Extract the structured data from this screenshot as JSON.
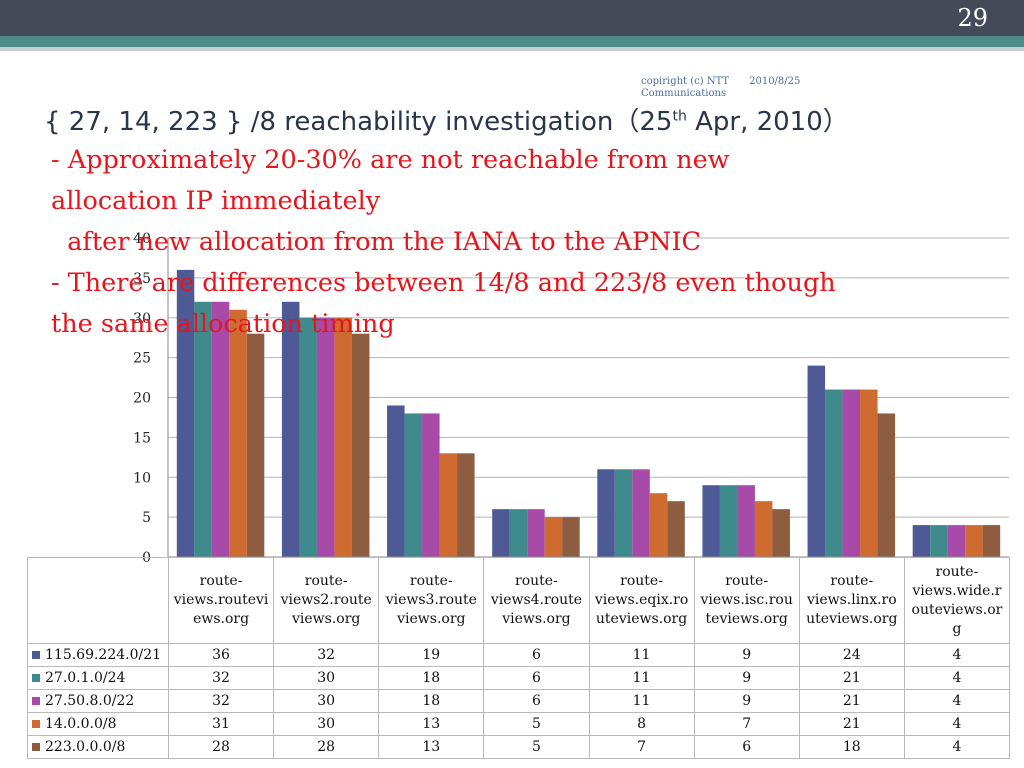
{
  "slide_number": "29",
  "copyright": {
    "text": "copiright (c) NTT",
    "sub": "Communications",
    "date": "2010/8/25"
  },
  "title": {
    "main": "{ 27, 14, 223 } /8 reachability investigation（25",
    "sup": "th",
    "tail": " Apr, 2010）"
  },
  "bullets": [
    "- Approximately 20-30% are not reachable from new",
    "allocation IP immediately",
    "  after new allocation from the IANA to the APNIC",
    "- There are differences between 14/8 and 223/8 even though",
    "the same allocation timing"
  ],
  "colors": {
    "topbar": "#454a59",
    "teal": "#4f8a8b",
    "bullet_text": "#e8141b"
  },
  "chart_data": {
    "type": "bar",
    "categories": [
      "route-views.routeviews.org",
      "route-views2.routeviews.org",
      "route-views3.routeviews.org",
      "route-views4.routeviews.org",
      "route-views.eqix.routeviews.org",
      "route-views.isc.routeviews.org",
      "route-views.linx.routeviews.org",
      "route-views.wide.routeviews.org"
    ],
    "category_labels": [
      [
        "route-",
        "views.routevi",
        "ews.org"
      ],
      [
        "route-",
        "views2.route",
        "views.org"
      ],
      [
        "route-",
        "views3.route",
        "views.org"
      ],
      [
        "route-",
        "views4.route",
        "views.org"
      ],
      [
        "route-",
        "views.eqix.ro",
        "uteviews.org"
      ],
      [
        "route-",
        "views.isc.rou",
        "teviews.org"
      ],
      [
        "route-",
        "views.linx.ro",
        "uteviews.org"
      ],
      [
        "route-",
        "views.wide.r",
        "outeviews.or",
        "g"
      ]
    ],
    "series": [
      {
        "name": "115.69.224.0/21",
        "color": "#4e5a96",
        "values": [
          36,
          32,
          19,
          6,
          11,
          9,
          24,
          4
        ]
      },
      {
        "name": "27.0.1.0/24",
        "color": "#3f8a8c",
        "values": [
          32,
          30,
          18,
          6,
          11,
          9,
          21,
          4
        ]
      },
      {
        "name": "27.50.8.0/22",
        "color": "#a74aa8",
        "values": [
          32,
          30,
          18,
          6,
          11,
          9,
          21,
          4
        ]
      },
      {
        "name": "14.0.0.0/8",
        "color": "#cf6a31",
        "values": [
          31,
          30,
          13,
          5,
          8,
          7,
          21,
          4
        ]
      },
      {
        "name": "223.0.0.0/8",
        "color": "#8e5d3f",
        "values": [
          28,
          28,
          13,
          5,
          7,
          6,
          18,
          4
        ]
      }
    ],
    "yticks": [
      0,
      5,
      10,
      15,
      20,
      25,
      30,
      35,
      40
    ],
    "ylim": [
      0,
      40
    ],
    "grid": true,
    "legend": "table"
  }
}
